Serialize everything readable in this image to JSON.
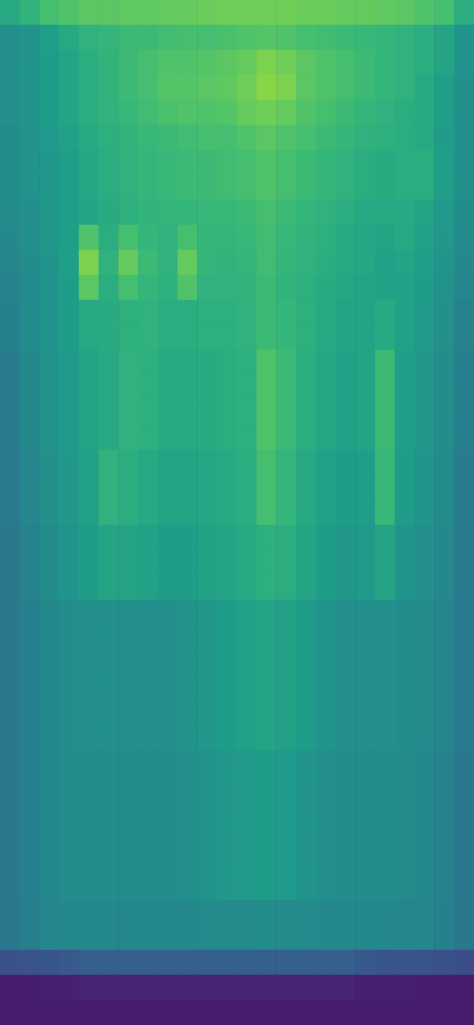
{
  "chart_data": {
    "type": "heatmap",
    "tick_labels": false,
    "grid": false,
    "zlim": [
      0,
      1
    ],
    "cells": [
      [
        0.6,
        0.65,
        0.7,
        0.72,
        0.74,
        0.74,
        0.75,
        0.75,
        0.76,
        0.76,
        0.77,
        0.78,
        0.78,
        0.78,
        0.78,
        0.77,
        0.77,
        0.76,
        0.76,
        0.75,
        0.74,
        0.72,
        0.7,
        0.62
      ],
      [
        0.5,
        0.52,
        0.56,
        0.6,
        0.64,
        0.66,
        0.68,
        0.68,
        0.69,
        0.7,
        0.7,
        0.71,
        0.72,
        0.73,
        0.72,
        0.7,
        0.69,
        0.68,
        0.67,
        0.66,
        0.64,
        0.62,
        0.58,
        0.52
      ],
      [
        0.5,
        0.52,
        0.55,
        0.58,
        0.62,
        0.65,
        0.68,
        0.7,
        0.72,
        0.72,
        0.73,
        0.74,
        0.76,
        0.8,
        0.78,
        0.74,
        0.72,
        0.7,
        0.68,
        0.66,
        0.64,
        0.62,
        0.58,
        0.52
      ],
      [
        0.5,
        0.52,
        0.55,
        0.58,
        0.62,
        0.65,
        0.68,
        0.7,
        0.73,
        0.73,
        0.74,
        0.75,
        0.78,
        0.82,
        0.8,
        0.74,
        0.72,
        0.7,
        0.68,
        0.66,
        0.64,
        0.6,
        0.56,
        0.5
      ],
      [
        0.5,
        0.52,
        0.55,
        0.58,
        0.62,
        0.64,
        0.67,
        0.69,
        0.71,
        0.72,
        0.72,
        0.73,
        0.76,
        0.78,
        0.76,
        0.72,
        0.7,
        0.68,
        0.66,
        0.64,
        0.62,
        0.6,
        0.56,
        0.5
      ],
      [
        0.49,
        0.51,
        0.54,
        0.57,
        0.6,
        0.63,
        0.65,
        0.67,
        0.68,
        0.69,
        0.7,
        0.7,
        0.72,
        0.74,
        0.72,
        0.7,
        0.68,
        0.66,
        0.64,
        0.63,
        0.62,
        0.6,
        0.55,
        0.5
      ],
      [
        0.49,
        0.51,
        0.53,
        0.56,
        0.59,
        0.62,
        0.64,
        0.66,
        0.67,
        0.68,
        0.68,
        0.69,
        0.7,
        0.72,
        0.7,
        0.68,
        0.66,
        0.64,
        0.62,
        0.61,
        0.62,
        0.62,
        0.56,
        0.5
      ],
      [
        0.49,
        0.51,
        0.53,
        0.56,
        0.59,
        0.62,
        0.64,
        0.66,
        0.67,
        0.68,
        0.68,
        0.69,
        0.7,
        0.72,
        0.7,
        0.68,
        0.66,
        0.64,
        0.62,
        0.61,
        0.62,
        0.62,
        0.56,
        0.5
      ],
      [
        0.48,
        0.5,
        0.53,
        0.56,
        0.58,
        0.61,
        0.63,
        0.65,
        0.66,
        0.66,
        0.67,
        0.67,
        0.68,
        0.7,
        0.68,
        0.66,
        0.64,
        0.62,
        0.6,
        0.6,
        0.6,
        0.58,
        0.54,
        0.49
      ],
      [
        0.47,
        0.5,
        0.53,
        0.56,
        0.72,
        0.62,
        0.7,
        0.66,
        0.64,
        0.7,
        0.66,
        0.66,
        0.67,
        0.69,
        0.67,
        0.65,
        0.63,
        0.6,
        0.59,
        0.58,
        0.6,
        0.57,
        0.53,
        0.48
      ],
      [
        0.46,
        0.49,
        0.52,
        0.56,
        0.8,
        0.64,
        0.76,
        0.68,
        0.64,
        0.76,
        0.66,
        0.65,
        0.66,
        0.69,
        0.66,
        0.64,
        0.62,
        0.6,
        0.59,
        0.57,
        0.58,
        0.56,
        0.52,
        0.47
      ],
      [
        0.45,
        0.48,
        0.52,
        0.55,
        0.74,
        0.62,
        0.7,
        0.66,
        0.63,
        0.72,
        0.64,
        0.64,
        0.65,
        0.68,
        0.65,
        0.63,
        0.61,
        0.59,
        0.58,
        0.57,
        0.57,
        0.55,
        0.51,
        0.46
      ],
      [
        0.44,
        0.48,
        0.52,
        0.55,
        0.6,
        0.61,
        0.63,
        0.64,
        0.62,
        0.62,
        0.63,
        0.63,
        0.64,
        0.68,
        0.66,
        0.63,
        0.6,
        0.58,
        0.58,
        0.6,
        0.57,
        0.54,
        0.5,
        0.45
      ],
      [
        0.44,
        0.48,
        0.52,
        0.55,
        0.6,
        0.61,
        0.63,
        0.64,
        0.62,
        0.62,
        0.63,
        0.63,
        0.64,
        0.68,
        0.66,
        0.63,
        0.6,
        0.58,
        0.58,
        0.6,
        0.57,
        0.54,
        0.5,
        0.45
      ],
      [
        0.42,
        0.47,
        0.51,
        0.54,
        0.58,
        0.6,
        0.64,
        0.63,
        0.6,
        0.6,
        0.61,
        0.62,
        0.63,
        0.72,
        0.68,
        0.62,
        0.59,
        0.57,
        0.58,
        0.68,
        0.56,
        0.53,
        0.49,
        0.43
      ],
      [
        0.42,
        0.47,
        0.51,
        0.54,
        0.58,
        0.6,
        0.64,
        0.63,
        0.6,
        0.6,
        0.61,
        0.62,
        0.63,
        0.72,
        0.68,
        0.62,
        0.59,
        0.57,
        0.58,
        0.68,
        0.56,
        0.53,
        0.49,
        0.43
      ],
      [
        0.42,
        0.47,
        0.51,
        0.54,
        0.58,
        0.6,
        0.64,
        0.63,
        0.6,
        0.6,
        0.61,
        0.62,
        0.63,
        0.72,
        0.68,
        0.62,
        0.59,
        0.57,
        0.58,
        0.68,
        0.56,
        0.53,
        0.49,
        0.43
      ],
      [
        0.42,
        0.47,
        0.51,
        0.54,
        0.58,
        0.6,
        0.64,
        0.63,
        0.6,
        0.6,
        0.61,
        0.62,
        0.63,
        0.72,
        0.68,
        0.62,
        0.59,
        0.57,
        0.58,
        0.68,
        0.56,
        0.53,
        0.49,
        0.43
      ],
      [
        0.41,
        0.46,
        0.5,
        0.53,
        0.57,
        0.64,
        0.62,
        0.6,
        0.58,
        0.58,
        0.59,
        0.6,
        0.62,
        0.7,
        0.66,
        0.6,
        0.57,
        0.55,
        0.56,
        0.67,
        0.55,
        0.52,
        0.48,
        0.42
      ],
      [
        0.41,
        0.46,
        0.5,
        0.53,
        0.57,
        0.64,
        0.62,
        0.6,
        0.58,
        0.58,
        0.59,
        0.6,
        0.62,
        0.7,
        0.66,
        0.6,
        0.57,
        0.55,
        0.56,
        0.67,
        0.55,
        0.52,
        0.48,
        0.42
      ],
      [
        0.41,
        0.46,
        0.5,
        0.53,
        0.57,
        0.64,
        0.62,
        0.6,
        0.58,
        0.58,
        0.59,
        0.6,
        0.62,
        0.7,
        0.66,
        0.6,
        0.57,
        0.55,
        0.56,
        0.67,
        0.55,
        0.52,
        0.48,
        0.42
      ],
      [
        0.4,
        0.45,
        0.49,
        0.52,
        0.55,
        0.58,
        0.58,
        0.57,
        0.55,
        0.55,
        0.57,
        0.58,
        0.6,
        0.63,
        0.62,
        0.58,
        0.55,
        0.53,
        0.54,
        0.58,
        0.52,
        0.5,
        0.47,
        0.41
      ],
      [
        0.4,
        0.45,
        0.49,
        0.52,
        0.55,
        0.58,
        0.58,
        0.57,
        0.55,
        0.55,
        0.57,
        0.58,
        0.6,
        0.63,
        0.62,
        0.58,
        0.55,
        0.53,
        0.54,
        0.58,
        0.52,
        0.5,
        0.47,
        0.41
      ],
      [
        0.4,
        0.45,
        0.49,
        0.52,
        0.55,
        0.58,
        0.58,
        0.57,
        0.55,
        0.55,
        0.57,
        0.58,
        0.6,
        0.63,
        0.62,
        0.58,
        0.55,
        0.53,
        0.54,
        0.58,
        0.52,
        0.5,
        0.47,
        0.41
      ],
      [
        0.4,
        0.44,
        0.47,
        0.49,
        0.5,
        0.5,
        0.5,
        0.5,
        0.5,
        0.51,
        0.53,
        0.55,
        0.57,
        0.58,
        0.57,
        0.55,
        0.52,
        0.5,
        0.5,
        0.5,
        0.49,
        0.48,
        0.46,
        0.41
      ],
      [
        0.4,
        0.44,
        0.47,
        0.49,
        0.5,
        0.5,
        0.5,
        0.5,
        0.5,
        0.51,
        0.53,
        0.55,
        0.57,
        0.58,
        0.57,
        0.55,
        0.52,
        0.5,
        0.5,
        0.5,
        0.49,
        0.48,
        0.46,
        0.41
      ],
      [
        0.4,
        0.44,
        0.47,
        0.49,
        0.5,
        0.5,
        0.5,
        0.5,
        0.5,
        0.51,
        0.53,
        0.55,
        0.57,
        0.58,
        0.57,
        0.55,
        0.52,
        0.5,
        0.5,
        0.5,
        0.49,
        0.48,
        0.46,
        0.41
      ],
      [
        0.4,
        0.44,
        0.47,
        0.49,
        0.5,
        0.5,
        0.5,
        0.5,
        0.5,
        0.51,
        0.53,
        0.55,
        0.57,
        0.58,
        0.57,
        0.55,
        0.52,
        0.5,
        0.5,
        0.5,
        0.49,
        0.48,
        0.46,
        0.41
      ],
      [
        0.4,
        0.44,
        0.47,
        0.49,
        0.5,
        0.5,
        0.5,
        0.5,
        0.5,
        0.51,
        0.53,
        0.55,
        0.57,
        0.58,
        0.57,
        0.55,
        0.52,
        0.5,
        0.5,
        0.5,
        0.49,
        0.48,
        0.46,
        0.41
      ],
      [
        0.4,
        0.44,
        0.47,
        0.49,
        0.5,
        0.5,
        0.5,
        0.5,
        0.5,
        0.51,
        0.53,
        0.55,
        0.57,
        0.58,
        0.57,
        0.55,
        0.52,
        0.5,
        0.5,
        0.5,
        0.49,
        0.48,
        0.46,
        0.41
      ],
      [
        0.4,
        0.44,
        0.47,
        0.49,
        0.49,
        0.49,
        0.49,
        0.49,
        0.49,
        0.5,
        0.51,
        0.53,
        0.54,
        0.55,
        0.54,
        0.52,
        0.5,
        0.49,
        0.49,
        0.49,
        0.48,
        0.47,
        0.45,
        0.4
      ],
      [
        0.4,
        0.44,
        0.47,
        0.49,
        0.49,
        0.49,
        0.49,
        0.49,
        0.49,
        0.5,
        0.51,
        0.53,
        0.54,
        0.55,
        0.54,
        0.52,
        0.5,
        0.49,
        0.49,
        0.49,
        0.48,
        0.47,
        0.45,
        0.4
      ],
      [
        0.4,
        0.44,
        0.47,
        0.49,
        0.49,
        0.49,
        0.49,
        0.49,
        0.49,
        0.5,
        0.51,
        0.53,
        0.54,
        0.55,
        0.54,
        0.52,
        0.5,
        0.49,
        0.49,
        0.49,
        0.48,
        0.47,
        0.45,
        0.4
      ],
      [
        0.4,
        0.44,
        0.47,
        0.49,
        0.49,
        0.49,
        0.49,
        0.49,
        0.49,
        0.5,
        0.51,
        0.53,
        0.54,
        0.55,
        0.54,
        0.52,
        0.5,
        0.49,
        0.49,
        0.49,
        0.48,
        0.47,
        0.45,
        0.4
      ],
      [
        0.4,
        0.44,
        0.47,
        0.49,
        0.49,
        0.49,
        0.49,
        0.49,
        0.49,
        0.5,
        0.51,
        0.53,
        0.54,
        0.55,
        0.54,
        0.52,
        0.5,
        0.49,
        0.49,
        0.49,
        0.48,
        0.47,
        0.45,
        0.4
      ],
      [
        0.4,
        0.44,
        0.47,
        0.49,
        0.49,
        0.49,
        0.49,
        0.49,
        0.49,
        0.5,
        0.51,
        0.53,
        0.54,
        0.55,
        0.54,
        0.52,
        0.5,
        0.49,
        0.49,
        0.49,
        0.48,
        0.47,
        0.45,
        0.4
      ],
      [
        0.4,
        0.43,
        0.46,
        0.47,
        0.47,
        0.47,
        0.47,
        0.47,
        0.47,
        0.47,
        0.48,
        0.48,
        0.48,
        0.49,
        0.48,
        0.48,
        0.47,
        0.47,
        0.47,
        0.47,
        0.46,
        0.46,
        0.44,
        0.4
      ],
      [
        0.4,
        0.43,
        0.46,
        0.47,
        0.47,
        0.47,
        0.47,
        0.47,
        0.47,
        0.47,
        0.48,
        0.48,
        0.48,
        0.49,
        0.48,
        0.48,
        0.47,
        0.47,
        0.47,
        0.47,
        0.46,
        0.46,
        0.44,
        0.4
      ],
      [
        0.25,
        0.26,
        0.27,
        0.28,
        0.3,
        0.3,
        0.3,
        0.3,
        0.3,
        0.3,
        0.3,
        0.3,
        0.3,
        0.3,
        0.3,
        0.3,
        0.3,
        0.3,
        0.28,
        0.27,
        0.27,
        0.26,
        0.25,
        0.24
      ],
      [
        0.08,
        0.08,
        0.09,
        0.09,
        0.1,
        0.1,
        0.1,
        0.1,
        0.1,
        0.1,
        0.1,
        0.1,
        0.1,
        0.1,
        0.1,
        0.1,
        0.1,
        0.1,
        0.09,
        0.09,
        0.09,
        0.08,
        0.08,
        0.08
      ],
      [
        0.08,
        0.08,
        0.08,
        0.08,
        0.08,
        0.08,
        0.08,
        0.08,
        0.08,
        0.08,
        0.08,
        0.08,
        0.08,
        0.08,
        0.08,
        0.08,
        0.08,
        0.08,
        0.08,
        0.08,
        0.08,
        0.08,
        0.08,
        0.08
      ]
    ]
  }
}
